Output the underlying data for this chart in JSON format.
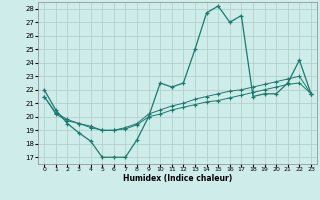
{
  "xlabel": "Humidex (Indice chaleur)",
  "bg_color": "#ceecea",
  "grid_color": "#b0ccc8",
  "line_color": "#1a7a6e",
  "xlim": [
    -0.5,
    23.5
  ],
  "ylim": [
    16.5,
    28.5
  ],
  "xticks": [
    0,
    1,
    2,
    3,
    4,
    5,
    6,
    7,
    8,
    9,
    10,
    11,
    12,
    13,
    14,
    15,
    16,
    17,
    18,
    19,
    20,
    21,
    22,
    23
  ],
  "yticks": [
    17,
    18,
    19,
    20,
    21,
    22,
    23,
    24,
    25,
    26,
    27,
    28
  ],
  "line1_x": [
    0,
    1,
    2,
    3,
    4,
    5,
    6,
    7,
    8,
    9,
    10,
    11,
    12,
    13,
    14,
    15,
    16,
    17,
    18,
    19,
    20,
    21,
    22,
    23
  ],
  "line1_y": [
    22,
    20.5,
    19.5,
    18.8,
    18.2,
    17.0,
    17.0,
    17.0,
    18.3,
    20.0,
    22.5,
    22.2,
    22.5,
    25.0,
    27.7,
    28.2,
    27.0,
    27.5,
    21.5,
    21.7,
    21.7,
    22.5,
    24.2,
    21.7
  ],
  "line2_x": [
    0,
    1,
    2,
    3,
    4,
    5,
    6,
    7,
    8,
    9,
    10,
    11,
    12,
    13,
    14,
    15,
    16,
    17,
    18,
    19,
    20,
    21,
    22,
    23
  ],
  "line2_y": [
    21.5,
    20.3,
    19.8,
    19.5,
    19.3,
    19.0,
    19.0,
    19.2,
    19.5,
    20.2,
    20.5,
    20.8,
    21.0,
    21.3,
    21.5,
    21.7,
    21.9,
    22.0,
    22.2,
    22.4,
    22.6,
    22.8,
    23.0,
    21.7
  ],
  "line3_x": [
    0,
    1,
    2,
    3,
    4,
    5,
    6,
    7,
    8,
    9,
    10,
    11,
    12,
    13,
    14,
    15,
    16,
    17,
    18,
    19,
    20,
    21,
    22,
    23
  ],
  "line3_y": [
    21.5,
    20.2,
    19.7,
    19.5,
    19.2,
    19.0,
    19.0,
    19.1,
    19.4,
    20.0,
    20.2,
    20.5,
    20.7,
    20.9,
    21.1,
    21.2,
    21.4,
    21.6,
    21.8,
    22.0,
    22.2,
    22.4,
    22.5,
    21.7
  ]
}
